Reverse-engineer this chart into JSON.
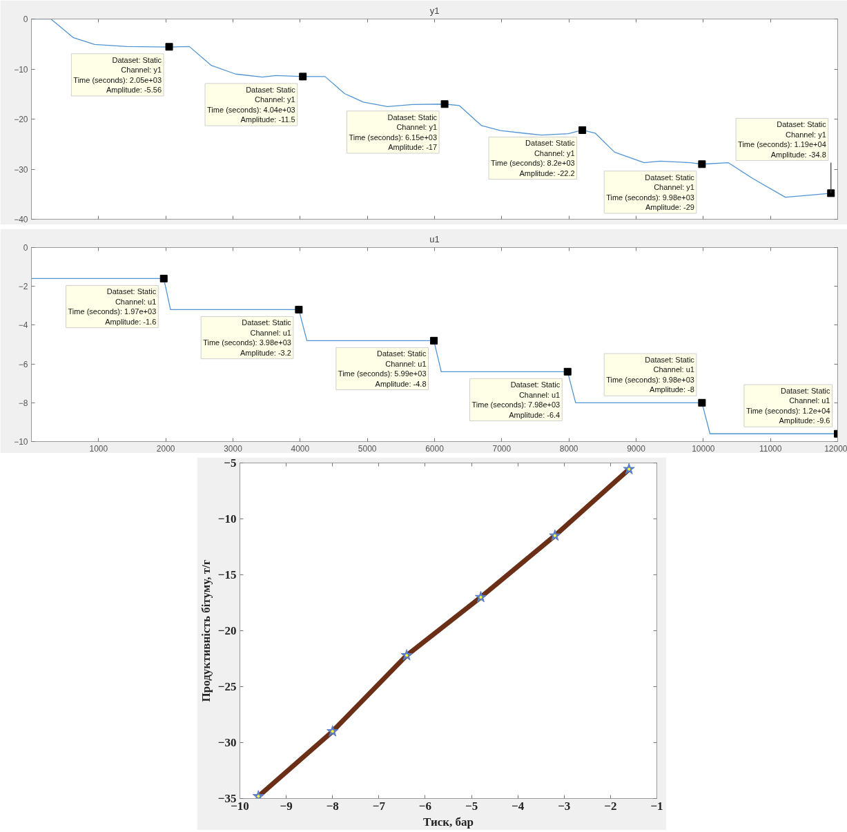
{
  "chart_data": [
    {
      "type": "line",
      "title": "y1",
      "xlim": [
        0,
        12000
      ],
      "xticks": [
        1000,
        2000,
        3000,
        4000,
        5000,
        6000,
        7000,
        8000,
        9000,
        10000,
        11000,
        12000
      ],
      "ylim": [
        -40,
        0
      ],
      "yticks": [
        -40,
        -30,
        -20,
        -10,
        0
      ],
      "tick_labels": "y",
      "x": [
        0,
        290,
        620,
        940,
        1420,
        2050,
        2350,
        2680,
        3040,
        3440,
        3640,
        4040,
        4370,
        4660,
        4940,
        5300,
        5670,
        6150,
        6370,
        6700,
        6980,
        7590,
        7990,
        8200,
        8390,
        8680,
        9120,
        9360,
        9810,
        9980,
        10370,
        10740,
        11220,
        11500,
        11900
      ],
      "series": [
        {
          "color": "#4f94d4",
          "values": [
            0,
            0,
            -3.7,
            -5.1,
            -5.5,
            -5.6,
            -5.5,
            -9.3,
            -11,
            -11.6,
            -11.3,
            -11.5,
            -11.5,
            -14.9,
            -16.6,
            -17.5,
            -17.1,
            -17,
            -17.3,
            -21.3,
            -22.3,
            -23.2,
            -22.9,
            -22.2,
            -22.8,
            -26.6,
            -28.7,
            -28.4,
            -28.7,
            -29,
            -28.7,
            -31.9,
            -35.6,
            -35.3,
            -34.8
          ]
        }
      ],
      "annotations": [
        {
          "text": "Dataset: Static\nChannel: y1\nTime (seconds): 2.05e+03\nAmplitude: -5.56",
          "x": 2050,
          "y": -5.56
        },
        {
          "text": "Dataset: Static\nChannel: y1\nTime (seconds): 4.04e+03\nAmplitude: -11.5",
          "x": 4040,
          "y": -11.5
        },
        {
          "text": "Dataset: Static\nChannel: y1\nTime (seconds): 6.15e+03\nAmplitude: -17",
          "x": 6150,
          "y": -17
        },
        {
          "text": "Dataset: Static\nChannel: y1\nTime (seconds): 8.2e+03\nAmplitude: -22.2",
          "x": 8200,
          "y": -22.2
        },
        {
          "text": "Dataset: Static\nChannel: y1\nTime (seconds): 9.98e+03\nAmplitude: -29",
          "x": 9980,
          "y": -29
        },
        {
          "text": "Dataset: Static\nChannel: y1\nTime (seconds): 1.19e+04\nAmplitude: -34.8",
          "x": 11900,
          "y": -34.8
        }
      ]
    },
    {
      "type": "line",
      "title": "u1",
      "xlim": [
        0,
        12000
      ],
      "xticks": [
        1000,
        2000,
        3000,
        4000,
        5000,
        6000,
        7000,
        8000,
        9000,
        10000,
        11000,
        12000
      ],
      "ylim": [
        -10,
        0
      ],
      "yticks": [
        -10,
        -8,
        -6,
        -4,
        -2,
        0
      ],
      "x": [
        0,
        1970,
        2070,
        3980,
        4100,
        5990,
        6100,
        7980,
        8100,
        9980,
        10100,
        12000
      ],
      "series": [
        {
          "color": "#4f94d4",
          "values": [
            -1.6,
            -1.6,
            -3.2,
            -3.2,
            -4.8,
            -4.8,
            -6.4,
            -6.4,
            -8,
            -8,
            -9.6,
            -9.6
          ]
        }
      ],
      "annotations": [
        {
          "text": "Dataset: Static\nChannel: u1\nTime (seconds): 1.97e+03\nAmplitude: -1.6",
          "x": 1970,
          "y": -1.6
        },
        {
          "text": "Dataset: Static\nChannel: u1\nTime (seconds): 3.98e+03\nAmplitude: -3.2",
          "x": 3980,
          "y": -3.2
        },
        {
          "text": "Dataset: Static\nChannel: u1\nTime (seconds): 5.99e+03\nAmplitude: -4.8",
          "x": 5990,
          "y": -4.8
        },
        {
          "text": "Dataset: Static\nChannel: u1\nTime (seconds): 7.98e+03\nAmplitude: -6.4",
          "x": 7980,
          "y": -6.4
        },
        {
          "text": "Dataset: Static\nChannel: u1\nTime (seconds): 9.98e+03\nAmplitude: -8",
          "x": 9980,
          "y": -8
        },
        {
          "text": "Dataset: Static\nChannel: u1\nTime (seconds): 1.2e+04\nAmplitude: -9.6",
          "x": 12000,
          "y": -9.6
        }
      ]
    },
    {
      "type": "line",
      "xlabel": "Тиск, бар",
      "ylabel": "Продуктивність бітуму, т/г",
      "xlim": [
        -10,
        -1
      ],
      "xticks": [
        -10,
        -9,
        -8,
        -7,
        -6,
        -5,
        -4,
        -3,
        -2,
        -1
      ],
      "ylim": [
        -35,
        -5
      ],
      "yticks": [
        -35,
        -30,
        -25,
        -20,
        -15,
        -10,
        -5
      ],
      "x": [
        -1.6,
        -3.2,
        -4.8,
        -6.4,
        -8,
        -9.6
      ],
      "series": [
        {
          "type": "line",
          "marker": "none",
          "color": "#6b2f17",
          "values": [
            -5.56,
            -11.5,
            -17,
            -22.2,
            -29,
            -34.8
          ]
        },
        {
          "type": "scatter",
          "marker": "star",
          "color": "#5b7fc4",
          "values": [
            -5.56,
            -11.5,
            -17,
            -22.2,
            -29,
            -34.8
          ]
        }
      ]
    }
  ]
}
